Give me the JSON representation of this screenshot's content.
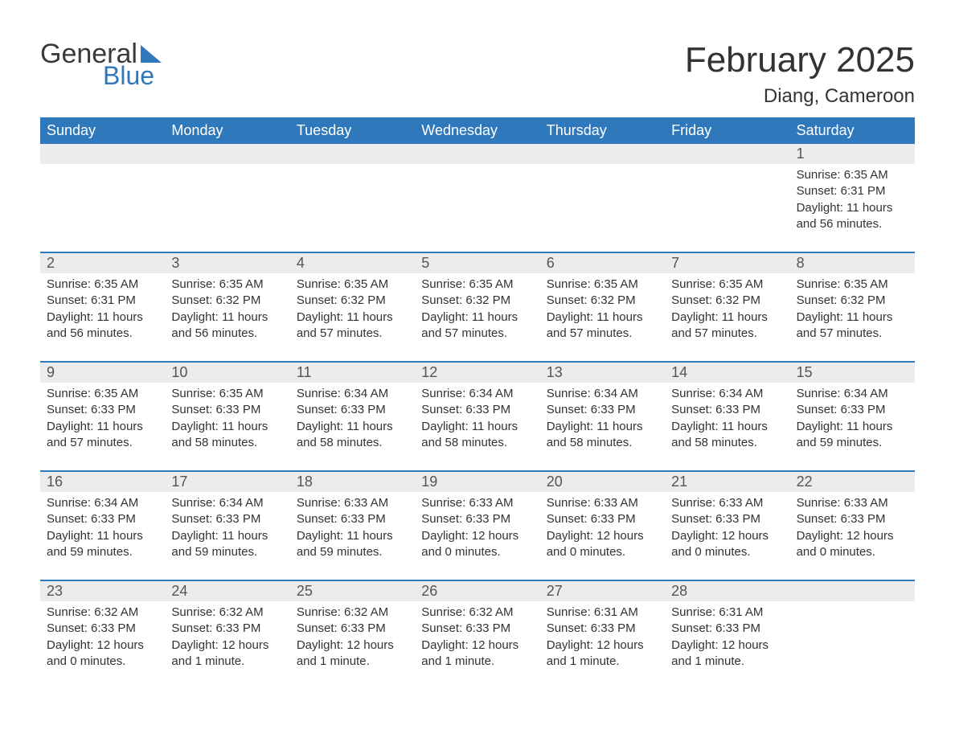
{
  "logo": {
    "text_general": "General",
    "text_blue": "Blue"
  },
  "title": "February 2025",
  "location": "Diang, Cameroon",
  "colors": {
    "header_bg": "#2f78bb",
    "header_text": "#ffffff",
    "daynum_bg": "#ececec",
    "week_border": "#2f78bb",
    "text": "#333333",
    "logo_dark": "#3a3a3a",
    "logo_blue": "#2f78bb",
    "background": "#ffffff"
  },
  "typography": {
    "title_fontsize": 44,
    "location_fontsize": 24,
    "dayheader_fontsize": 18,
    "daynum_fontsize": 18,
    "body_fontsize": 15,
    "logo_fontsize": 34
  },
  "day_names": [
    "Sunday",
    "Monday",
    "Tuesday",
    "Wednesday",
    "Thursday",
    "Friday",
    "Saturday"
  ],
  "weeks": [
    {
      "daynums": [
        "",
        "",
        "",
        "",
        "",
        "",
        "1"
      ],
      "cells": [
        null,
        null,
        null,
        null,
        null,
        null,
        {
          "sunrise": "Sunrise: 6:35 AM",
          "sunset": "Sunset: 6:31 PM",
          "daylight": "Daylight: 11 hours and 56 minutes."
        }
      ]
    },
    {
      "daynums": [
        "2",
        "3",
        "4",
        "5",
        "6",
        "7",
        "8"
      ],
      "cells": [
        {
          "sunrise": "Sunrise: 6:35 AM",
          "sunset": "Sunset: 6:31 PM",
          "daylight": "Daylight: 11 hours and 56 minutes."
        },
        {
          "sunrise": "Sunrise: 6:35 AM",
          "sunset": "Sunset: 6:32 PM",
          "daylight": "Daylight: 11 hours and 56 minutes."
        },
        {
          "sunrise": "Sunrise: 6:35 AM",
          "sunset": "Sunset: 6:32 PM",
          "daylight": "Daylight: 11 hours and 57 minutes."
        },
        {
          "sunrise": "Sunrise: 6:35 AM",
          "sunset": "Sunset: 6:32 PM",
          "daylight": "Daylight: 11 hours and 57 minutes."
        },
        {
          "sunrise": "Sunrise: 6:35 AM",
          "sunset": "Sunset: 6:32 PM",
          "daylight": "Daylight: 11 hours and 57 minutes."
        },
        {
          "sunrise": "Sunrise: 6:35 AM",
          "sunset": "Sunset: 6:32 PM",
          "daylight": "Daylight: 11 hours and 57 minutes."
        },
        {
          "sunrise": "Sunrise: 6:35 AM",
          "sunset": "Sunset: 6:32 PM",
          "daylight": "Daylight: 11 hours and 57 minutes."
        }
      ]
    },
    {
      "daynums": [
        "9",
        "10",
        "11",
        "12",
        "13",
        "14",
        "15"
      ],
      "cells": [
        {
          "sunrise": "Sunrise: 6:35 AM",
          "sunset": "Sunset: 6:33 PM",
          "daylight": "Daylight: 11 hours and 57 minutes."
        },
        {
          "sunrise": "Sunrise: 6:35 AM",
          "sunset": "Sunset: 6:33 PM",
          "daylight": "Daylight: 11 hours and 58 minutes."
        },
        {
          "sunrise": "Sunrise: 6:34 AM",
          "sunset": "Sunset: 6:33 PM",
          "daylight": "Daylight: 11 hours and 58 minutes."
        },
        {
          "sunrise": "Sunrise: 6:34 AM",
          "sunset": "Sunset: 6:33 PM",
          "daylight": "Daylight: 11 hours and 58 minutes."
        },
        {
          "sunrise": "Sunrise: 6:34 AM",
          "sunset": "Sunset: 6:33 PM",
          "daylight": "Daylight: 11 hours and 58 minutes."
        },
        {
          "sunrise": "Sunrise: 6:34 AM",
          "sunset": "Sunset: 6:33 PM",
          "daylight": "Daylight: 11 hours and 58 minutes."
        },
        {
          "sunrise": "Sunrise: 6:34 AM",
          "sunset": "Sunset: 6:33 PM",
          "daylight": "Daylight: 11 hours and 59 minutes."
        }
      ]
    },
    {
      "daynums": [
        "16",
        "17",
        "18",
        "19",
        "20",
        "21",
        "22"
      ],
      "cells": [
        {
          "sunrise": "Sunrise: 6:34 AM",
          "sunset": "Sunset: 6:33 PM",
          "daylight": "Daylight: 11 hours and 59 minutes."
        },
        {
          "sunrise": "Sunrise: 6:34 AM",
          "sunset": "Sunset: 6:33 PM",
          "daylight": "Daylight: 11 hours and 59 minutes."
        },
        {
          "sunrise": "Sunrise: 6:33 AM",
          "sunset": "Sunset: 6:33 PM",
          "daylight": "Daylight: 11 hours and 59 minutes."
        },
        {
          "sunrise": "Sunrise: 6:33 AM",
          "sunset": "Sunset: 6:33 PM",
          "daylight": "Daylight: 12 hours and 0 minutes."
        },
        {
          "sunrise": "Sunrise: 6:33 AM",
          "sunset": "Sunset: 6:33 PM",
          "daylight": "Daylight: 12 hours and 0 minutes."
        },
        {
          "sunrise": "Sunrise: 6:33 AM",
          "sunset": "Sunset: 6:33 PM",
          "daylight": "Daylight: 12 hours and 0 minutes."
        },
        {
          "sunrise": "Sunrise: 6:33 AM",
          "sunset": "Sunset: 6:33 PM",
          "daylight": "Daylight: 12 hours and 0 minutes."
        }
      ]
    },
    {
      "daynums": [
        "23",
        "24",
        "25",
        "26",
        "27",
        "28",
        ""
      ],
      "cells": [
        {
          "sunrise": "Sunrise: 6:32 AM",
          "sunset": "Sunset: 6:33 PM",
          "daylight": "Daylight: 12 hours and 0 minutes."
        },
        {
          "sunrise": "Sunrise: 6:32 AM",
          "sunset": "Sunset: 6:33 PM",
          "daylight": "Daylight: 12 hours and 1 minute."
        },
        {
          "sunrise": "Sunrise: 6:32 AM",
          "sunset": "Sunset: 6:33 PM",
          "daylight": "Daylight: 12 hours and 1 minute."
        },
        {
          "sunrise": "Sunrise: 6:32 AM",
          "sunset": "Sunset: 6:33 PM",
          "daylight": "Daylight: 12 hours and 1 minute."
        },
        {
          "sunrise": "Sunrise: 6:31 AM",
          "sunset": "Sunset: 6:33 PM",
          "daylight": "Daylight: 12 hours and 1 minute."
        },
        {
          "sunrise": "Sunrise: 6:31 AM",
          "sunset": "Sunset: 6:33 PM",
          "daylight": "Daylight: 12 hours and 1 minute."
        },
        null
      ]
    }
  ]
}
